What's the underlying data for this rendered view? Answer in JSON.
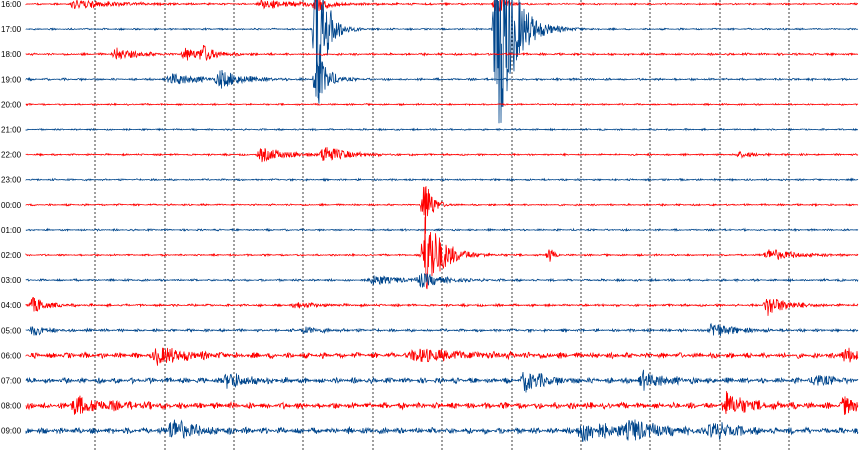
{
  "chart_data": {
    "type": "line",
    "title": "",
    "xlabel": "",
    "ylabel": "",
    "grid": true,
    "line_labels": [
      "16:00",
      "17:00",
      "18:00",
      "19:00",
      "20:00",
      "21:00",
      "22:00",
      "23:00",
      "00:00",
      "01:00",
      "02:00",
      "03:00",
      "04:00",
      "05:00",
      "06:00",
      "07:00",
      "08:00",
      "09:00"
    ],
    "minutes_per_line": 60,
    "colors": {
      "even": "#ff0000",
      "odd": "#00468c",
      "grid": "#000000",
      "background": "#ffffff"
    },
    "noise_level": [
      0.9,
      0.9,
      1.2,
      1.2,
      0.9,
      0.9,
      1.0,
      1.0,
      1.0,
      1.0,
      1.0,
      1.2,
      1.3,
      1.5,
      3.0,
      3.0,
      3.5,
      3.5
    ],
    "events": [
      {
        "line": 0,
        "minute": 3.5,
        "amp": 5,
        "dur": 6
      },
      {
        "line": 0,
        "minute": 17,
        "amp": 4,
        "dur": 8
      },
      {
        "line": 0,
        "minute": 21,
        "amp": 10,
        "dur": 1.2
      },
      {
        "line": 0,
        "minute": 34,
        "amp": 14,
        "dur": 1
      },
      {
        "line": 1,
        "minute": 21,
        "amp": 80,
        "dur": 1.5
      },
      {
        "line": 1,
        "minute": 34,
        "amp": 120,
        "dur": 2.5
      },
      {
        "line": 2,
        "minute": 6.5,
        "amp": 6,
        "dur": 3
      },
      {
        "line": 2,
        "minute": 11.5,
        "amp": 6,
        "dur": 3
      },
      {
        "line": 2,
        "minute": 12.8,
        "amp": 7,
        "dur": 1.5
      },
      {
        "line": 3,
        "minute": 10.5,
        "amp": 6,
        "dur": 4
      },
      {
        "line": 3,
        "minute": 14,
        "amp": 9,
        "dur": 3
      },
      {
        "line": 3,
        "minute": 21,
        "amp": 30,
        "dur": 1.5
      },
      {
        "line": 6,
        "minute": 17,
        "amp": 7,
        "dur": 4
      },
      {
        "line": 6,
        "minute": 21.5,
        "amp": 9,
        "dur": 3
      },
      {
        "line": 6,
        "minute": 51.5,
        "amp": 3,
        "dur": 2
      },
      {
        "line": 8,
        "minute": 28.8,
        "amp": 30,
        "dur": 1
      },
      {
        "line": 10,
        "minute": 28.8,
        "amp": 45,
        "dur": 2.5
      },
      {
        "line": 10,
        "minute": 37.8,
        "amp": 8,
        "dur": 0.5
      },
      {
        "line": 10,
        "minute": 53.5,
        "amp": 6,
        "dur": 4
      },
      {
        "line": 11,
        "minute": 25,
        "amp": 5,
        "dur": 4
      },
      {
        "line": 11,
        "minute": 28.5,
        "amp": 7,
        "dur": 3
      },
      {
        "line": 12,
        "minute": 0.5,
        "amp": 8,
        "dur": 2
      },
      {
        "line": 12,
        "minute": 19.5,
        "amp": 3,
        "dur": 3
      },
      {
        "line": 12,
        "minute": 53.5,
        "amp": 10,
        "dur": 3
      },
      {
        "line": 13,
        "minute": 0.5,
        "amp": 5,
        "dur": 2
      },
      {
        "line": 13,
        "minute": 20,
        "amp": 3,
        "dur": 3
      },
      {
        "line": 13,
        "minute": 49.5,
        "amp": 8,
        "dur": 3
      },
      {
        "line": 14,
        "minute": 9.5,
        "amp": 9,
        "dur": 4
      },
      {
        "line": 14,
        "minute": 28,
        "amp": 6,
        "dur": 8
      },
      {
        "line": 14,
        "minute": 59,
        "amp": 6,
        "dur": 4
      },
      {
        "line": 15,
        "minute": 14.5,
        "amp": 8,
        "dur": 3
      },
      {
        "line": 15,
        "minute": 36,
        "amp": 10,
        "dur": 3
      },
      {
        "line": 15,
        "minute": 44.5,
        "amp": 8,
        "dur": 3
      },
      {
        "line": 15,
        "minute": 57,
        "amp": 6,
        "dur": 2
      },
      {
        "line": 16,
        "minute": 3.5,
        "amp": 8,
        "dur": 5
      },
      {
        "line": 16,
        "minute": 50.5,
        "amp": 12,
        "dur": 3
      },
      {
        "line": 16,
        "minute": 59,
        "amp": 7,
        "dur": 4
      },
      {
        "line": 17,
        "minute": 10.5,
        "amp": 12,
        "dur": 3
      },
      {
        "line": 17,
        "minute": 40,
        "amp": 10,
        "dur": 5
      },
      {
        "line": 17,
        "minute": 43.5,
        "amp": 9,
        "dur": 4
      },
      {
        "line": 17,
        "minute": 49.5,
        "amp": 8,
        "dur": 3
      }
    ]
  }
}
